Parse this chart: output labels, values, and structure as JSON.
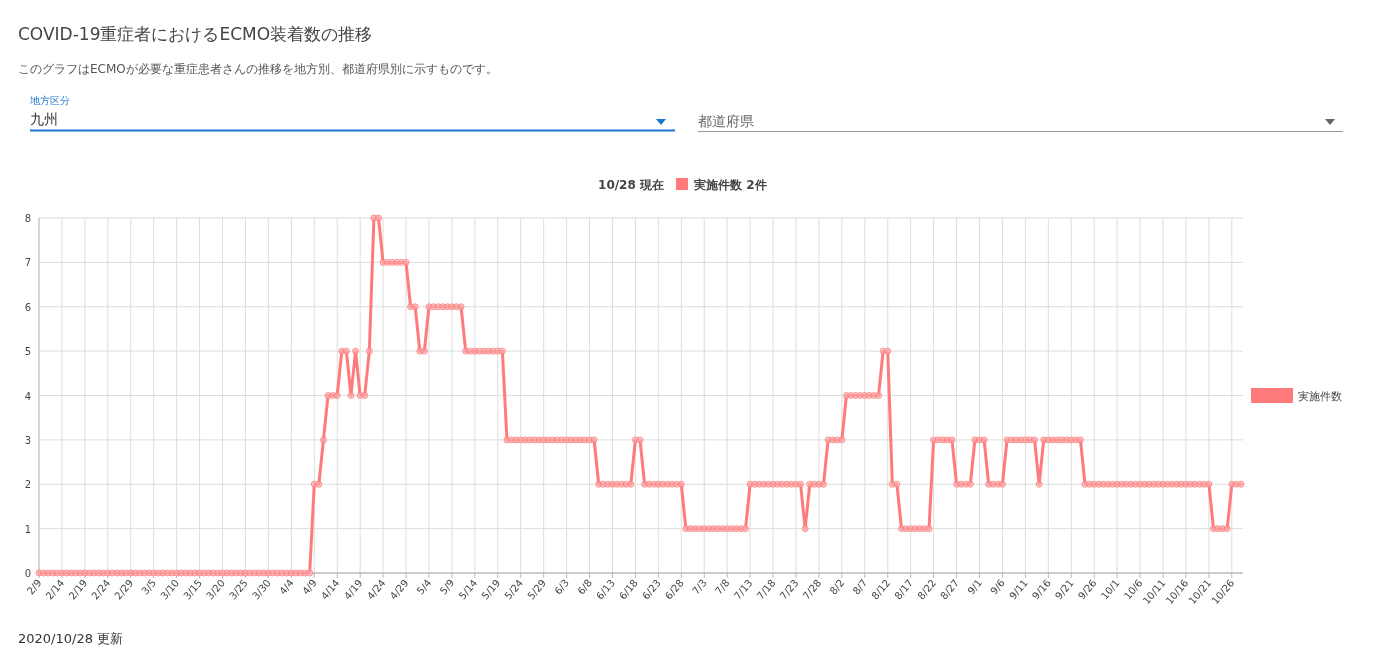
{
  "chart_data": {
    "type": "line",
    "title": "COVID-19重症者におけるECMO装着数の推移",
    "subtitle": "このグラフはECMOが必要な重症患者さんの推移を地方別、都道府県別に示すものです。",
    "annotations": [
      "地方区分",
      "九州",
      "都道府県",
      "10/28 現在",
      "実施件数 2件",
      "2020/10/28 更新"
    ],
    "categories": [
      "2/9",
      null,
      null,
      null,
      null,
      "2/14",
      null,
      null,
      null,
      null,
      "2/19",
      null,
      null,
      null,
      null,
      "2/24",
      null,
      null,
      null,
      null,
      "2/29",
      null,
      null,
      null,
      null,
      "3/5",
      null,
      null,
      null,
      null,
      "3/10",
      null,
      null,
      null,
      null,
      "3/15",
      null,
      null,
      null,
      null,
      "3/20",
      null,
      null,
      null,
      null,
      "3/25",
      null,
      null,
      null,
      null,
      "3/30",
      null,
      null,
      null,
      null,
      "4/4",
      null,
      null,
      null,
      null,
      "4/9",
      null,
      null,
      null,
      null,
      "4/14",
      null,
      null,
      null,
      null,
      "4/19",
      null,
      null,
      null,
      null,
      "4/24",
      null,
      null,
      null,
      null,
      "4/29",
      null,
      null,
      null,
      null,
      "5/4",
      null,
      null,
      null,
      null,
      "5/9",
      null,
      null,
      null,
      null,
      "5/14",
      null,
      null,
      null,
      null,
      "5/19",
      null,
      null,
      null,
      null,
      "5/24",
      null,
      null,
      null,
      null,
      "5/29",
      null,
      null,
      null,
      null,
      "6/3",
      null,
      null,
      null,
      null,
      "6/8",
      null,
      null,
      null,
      null,
      "6/13",
      null,
      null,
      null,
      null,
      "6/18",
      null,
      null,
      null,
      null,
      "6/23",
      null,
      null,
      null,
      null,
      "6/28",
      null,
      null,
      null,
      null,
      "7/3",
      null,
      null,
      null,
      null,
      "7/8",
      null,
      null,
      null,
      null,
      "7/13",
      null,
      null,
      null,
      null,
      "7/18",
      null,
      null,
      null,
      null,
      "7/23",
      null,
      null,
      null,
      null,
      "7/28",
      null,
      null,
      null,
      null,
      "8/2",
      null,
      null,
      null,
      null,
      "8/7",
      null,
      null,
      null,
      null,
      "8/12",
      null,
      null,
      null,
      null,
      "8/17",
      null,
      null,
      null,
      null,
      "8/22",
      null,
      null,
      null,
      null,
      "8/27",
      null,
      null,
      null,
      null,
      "9/1",
      null,
      null,
      null,
      null,
      "9/6",
      null,
      null,
      null,
      null,
      "9/11",
      null,
      null,
      null,
      null,
      "9/16",
      null,
      null,
      null,
      null,
      "9/21",
      null,
      null,
      null,
      null,
      "9/26",
      null,
      null,
      null,
      null,
      "10/1",
      null,
      null,
      null,
      null,
      "10/6",
      null,
      null,
      null,
      null,
      "10/11",
      null,
      null,
      null,
      null,
      "10/16",
      null,
      null,
      null,
      null,
      "10/21",
      null,
      null,
      null,
      null,
      "10/26",
      null,
      null
    ],
    "series": [
      {
        "name": "実施件数",
        "color": "#ff7b7b",
        "values": [
          0,
          0,
          0,
          0,
          0,
          0,
          0,
          0,
          0,
          0,
          0,
          0,
          0,
          0,
          0,
          0,
          0,
          0,
          0,
          0,
          0,
          0,
          0,
          0,
          0,
          0,
          0,
          0,
          0,
          0,
          0,
          0,
          0,
          0,
          0,
          0,
          0,
          0,
          0,
          0,
          0,
          0,
          0,
          0,
          0,
          0,
          0,
          0,
          0,
          0,
          0,
          0,
          0,
          0,
          0,
          0,
          0,
          0,
          0,
          0,
          2,
          2,
          3,
          4,
          4,
          4,
          5,
          5,
          4,
          5,
          4,
          4,
          5,
          8,
          8,
          7,
          7,
          7,
          7,
          7,
          7,
          6,
          6,
          5,
          5,
          6,
          6,
          6,
          6,
          6,
          6,
          6,
          6,
          5,
          5,
          5,
          5,
          5,
          5,
          5,
          5,
          5,
          3,
          3,
          3,
          3,
          3,
          3,
          3,
          3,
          3,
          3,
          3,
          3,
          3,
          3,
          3,
          3,
          3,
          3,
          3,
          3,
          2,
          2,
          2,
          2,
          2,
          2,
          2,
          2,
          3,
          3,
          2,
          2,
          2,
          2,
          2,
          2,
          2,
          2,
          2,
          1,
          1,
          1,
          1,
          1,
          1,
          1,
          1,
          1,
          1,
          1,
          1,
          1,
          1,
          2,
          2,
          2,
          2,
          2,
          2,
          2,
          2,
          2,
          2,
          2,
          2,
          1,
          2,
          2,
          2,
          2,
          3,
          3,
          3,
          3,
          4,
          4,
          4,
          4,
          4,
          4,
          4,
          4,
          5,
          5,
          2,
          2,
          1,
          1,
          1,
          1,
          1,
          1,
          1,
          3,
          3,
          3,
          3,
          3,
          2,
          2,
          2,
          2,
          3,
          3,
          3,
          2,
          2,
          2,
          2,
          3,
          3,
          3,
          3,
          3,
          3,
          3,
          2,
          3,
          3,
          3,
          3,
          3,
          3,
          3,
          3,
          3,
          2,
          2,
          2,
          2,
          2,
          2,
          2,
          2,
          2,
          2,
          2,
          2,
          2,
          2,
          2,
          2,
          2,
          2,
          2,
          2,
          2,
          2,
          2,
          2,
          2,
          2,
          2,
          2,
          1,
          1,
          1,
          1,
          2,
          2,
          2
        ]
      }
    ],
    "ylim": [
      0,
      8
    ],
    "yticks": [
      0,
      1,
      2,
      3,
      4,
      5,
      6,
      7,
      8
    ],
    "grid": true,
    "legend": "right",
    "marker": "circle",
    "line_style": "solid"
  }
}
